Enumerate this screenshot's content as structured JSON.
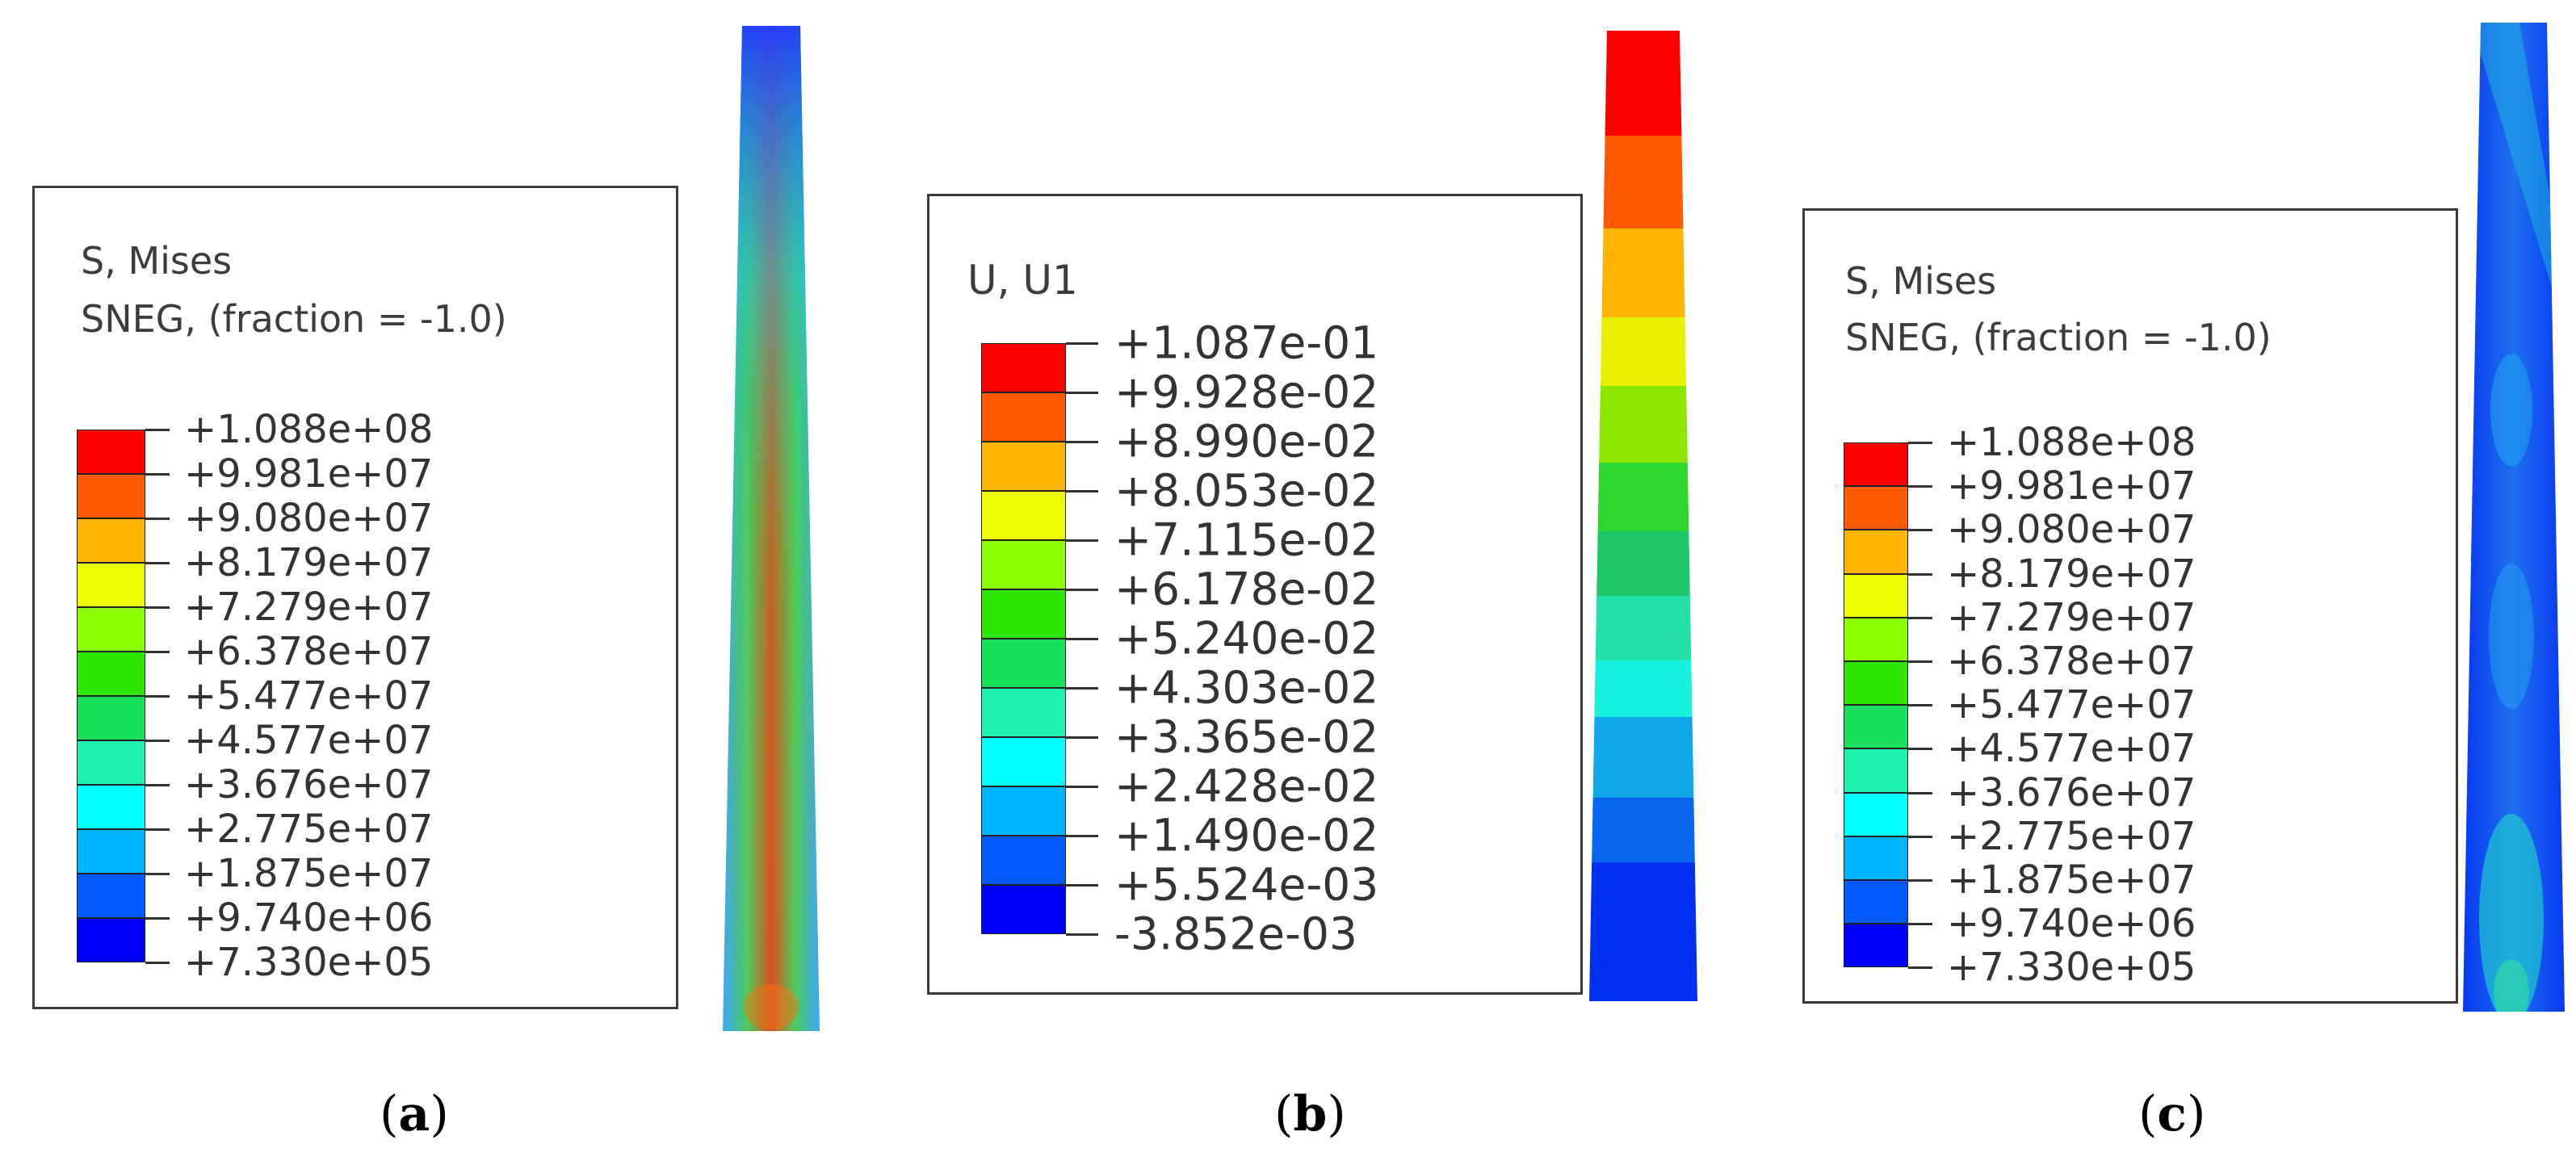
{
  "panels": [
    {
      "id": "a",
      "label_open": "(",
      "label_letter": "a",
      "label_close": ")",
      "title_line1": "S, Mises",
      "title_line2": "SNEG, (fraction = -1.0)",
      "legend_values": [
        "+1.088e+08",
        "+9.981e+07",
        "+9.080e+07",
        "+8.179e+07",
        "+7.279e+07",
        "+6.378e+07",
        "+5.477e+07",
        "+4.577e+07",
        "+3.676e+07",
        "+2.775e+07",
        "+1.875e+07",
        "+9.740e+06",
        "+7.330e+05"
      ]
    },
    {
      "id": "b",
      "label_open": "(",
      "label_letter": "b",
      "label_close": ")",
      "title_line1": "U, U1",
      "legend_values": [
        "+1.087e-01",
        "+9.928e-02",
        "+8.990e-02",
        "+8.053e-02",
        "+7.115e-02",
        "+6.178e-02",
        "+5.240e-02",
        "+4.303e-02",
        "+3.365e-02",
        "+2.428e-02",
        "+1.490e-02",
        "+5.524e-03",
        "-3.852e-03"
      ]
    },
    {
      "id": "c",
      "label_open": "(",
      "label_letter": "c",
      "label_close": ")",
      "title_line1": "S, Mises",
      "title_line2": "SNEG, (fraction = -1.0)",
      "legend_values": [
        "+1.088e+08",
        "+9.981e+07",
        "+9.080e+07",
        "+8.179e+07",
        "+7.279e+07",
        "+6.378e+07",
        "+5.477e+07",
        "+4.577e+07",
        "+3.676e+07",
        "+2.775e+07",
        "+1.875e+07",
        "+9.740e+06",
        "+7.330e+05"
      ]
    }
  ],
  "colormap": [
    "#ff0000",
    "#ff5a00",
    "#ffb400",
    "#ecff00",
    "#8cff00",
    "#2ee600",
    "#1fcc1f",
    "#18e05a",
    "#20f0b0",
    "#00ffff",
    "#00b4ff",
    "#005aff",
    "#0000ff"
  ]
}
